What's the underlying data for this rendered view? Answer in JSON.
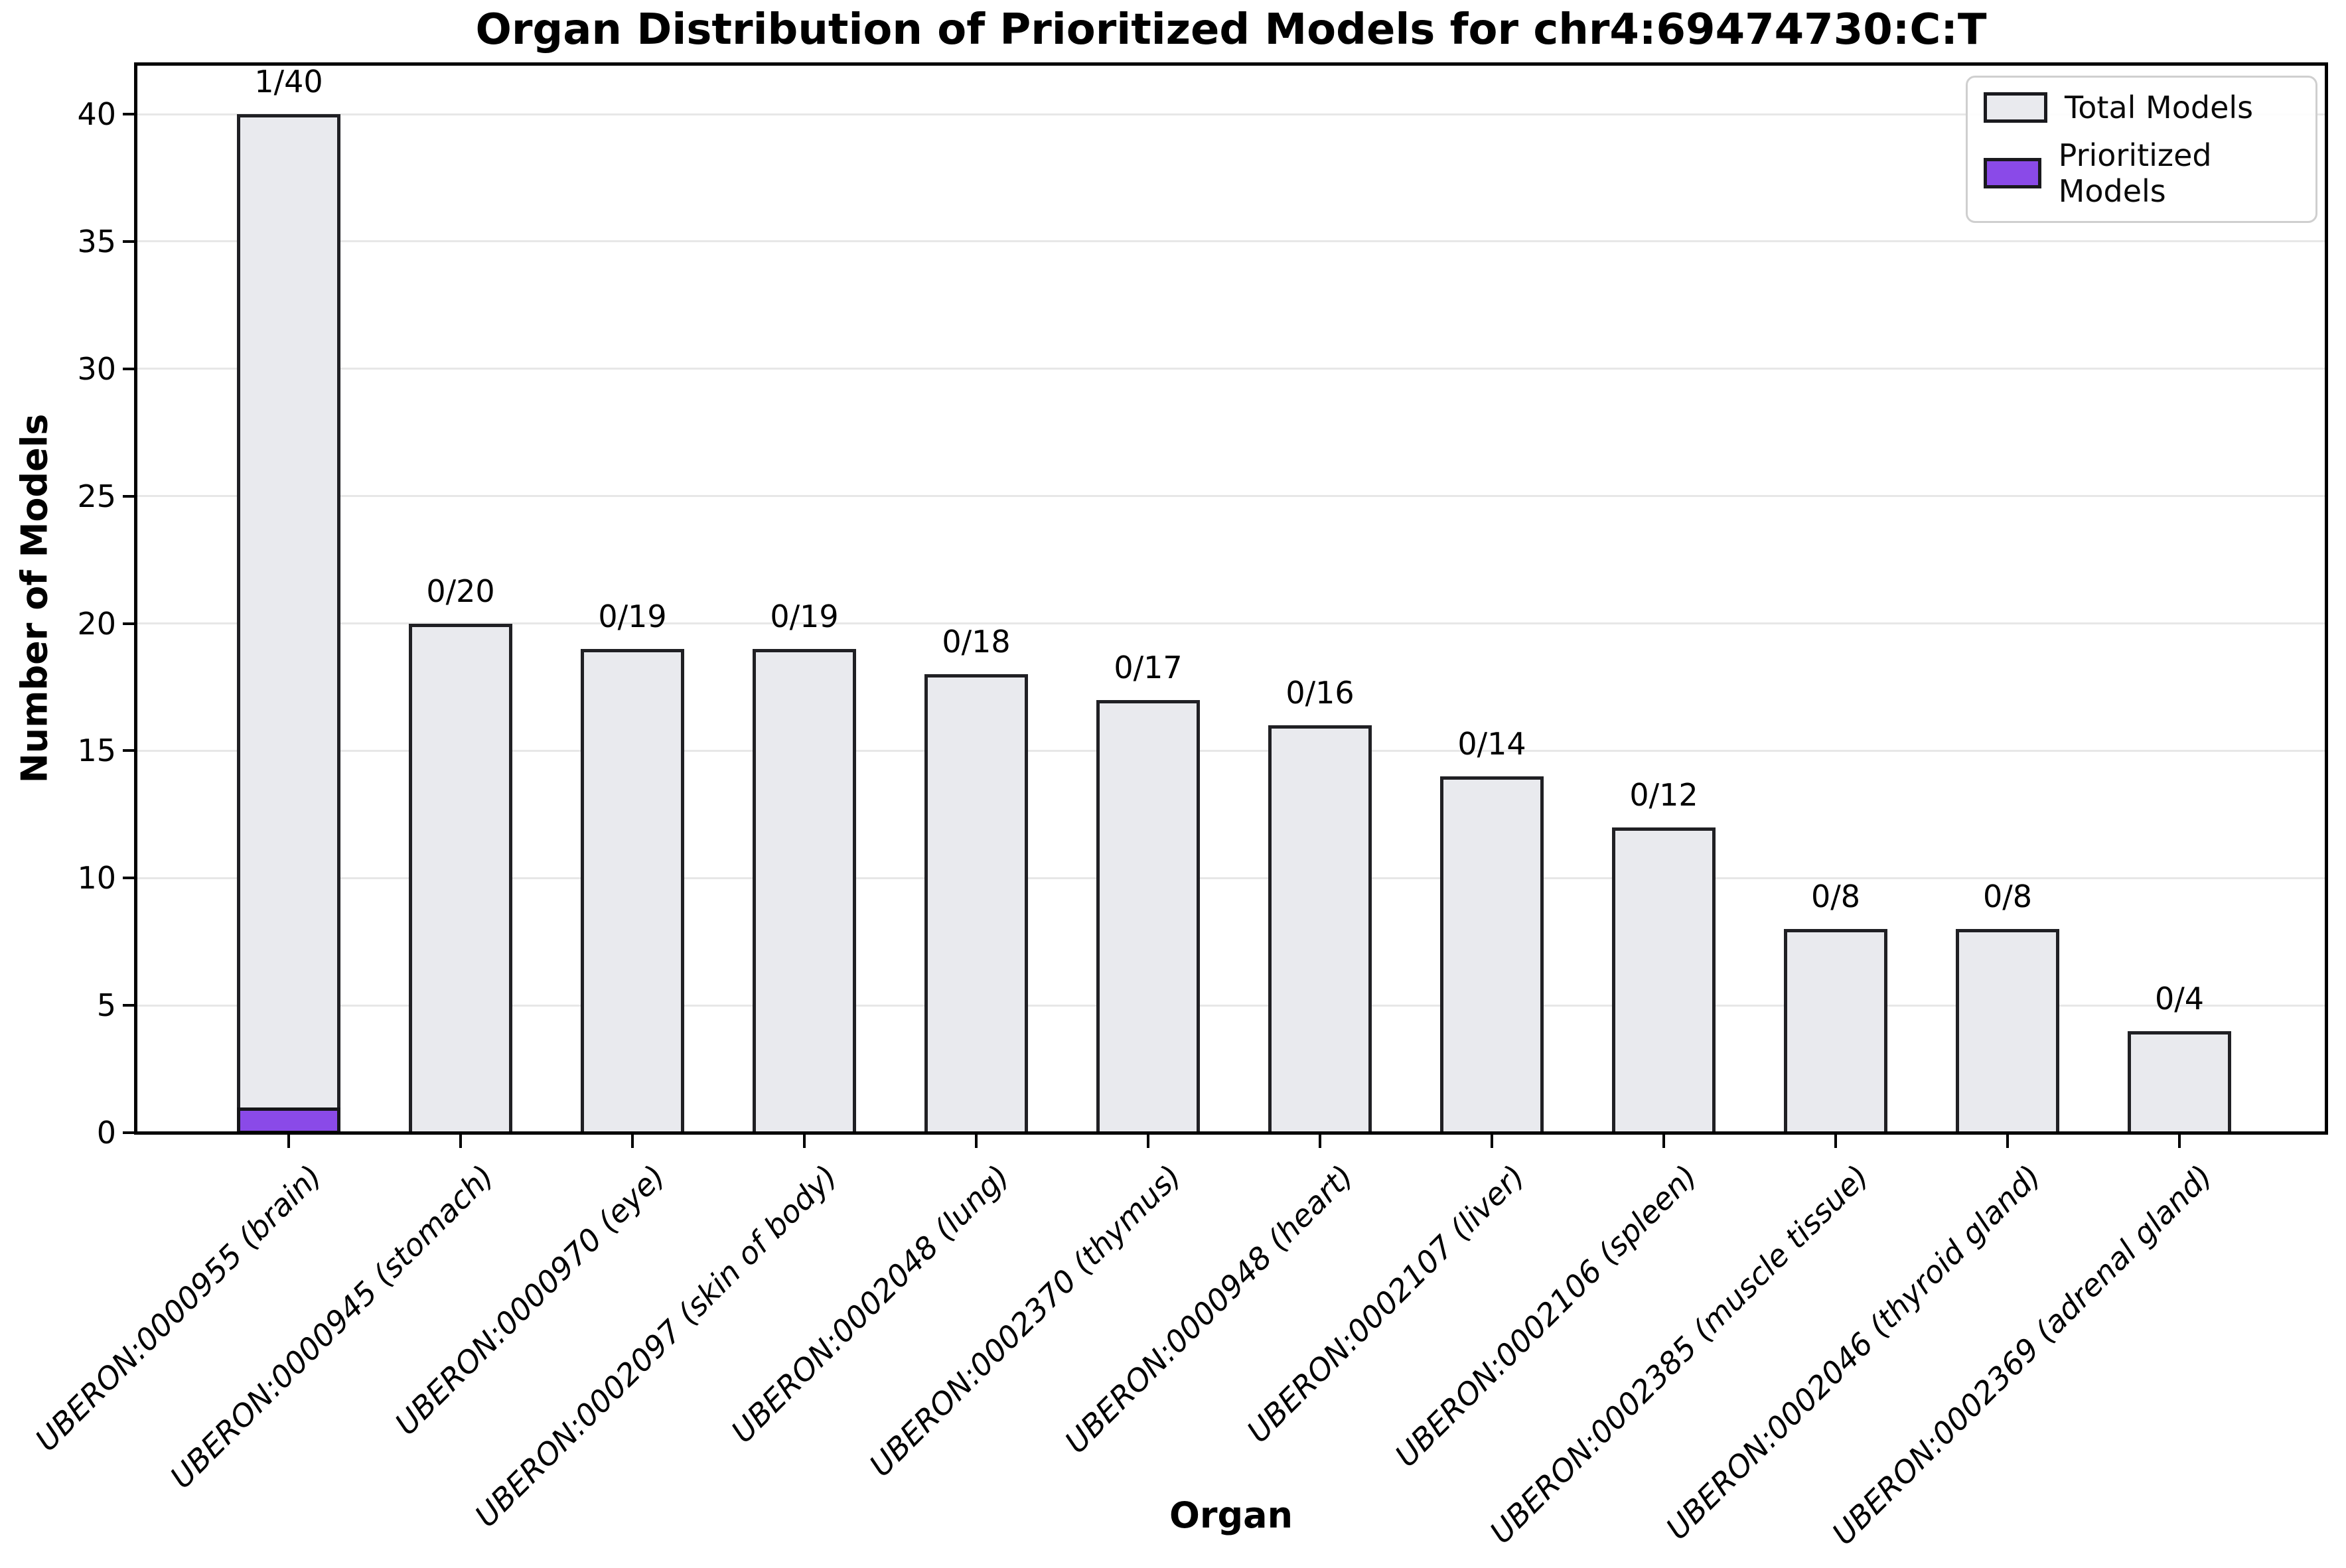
{
  "title": "Organ Distribution of Prioritized Models for chr4:69474730:C:T",
  "colors": {
    "total_fill": "#e9eaee",
    "prioritized_fill": "#8a4ae8",
    "bar_edge": "#202024",
    "grid": "#e7e7e7",
    "spine": "#000000"
  },
  "legend": {
    "items": [
      {
        "label": "Total Models",
        "color_key": "total_fill"
      },
      {
        "label": "Prioritized Models",
        "color_key": "prioritized_fill"
      }
    ]
  },
  "chart_data": {
    "type": "bar",
    "title": "Organ Distribution of Prioritized Models for chr4:69474730:C:T",
    "xlabel": "Organ",
    "ylabel": "Number of Models",
    "ylim": [
      0,
      42
    ],
    "yticks": [
      0,
      5,
      10,
      15,
      20,
      25,
      30,
      35,
      40
    ],
    "grid": "horizontal",
    "legend_position": "upper right",
    "categories": [
      "UBERON:0000955 (brain)",
      "UBERON:0000945 (stomach)",
      "UBERON:0000970 (eye)",
      "UBERON:0002097 (skin of body)",
      "UBERON:0002048 (lung)",
      "UBERON:0002370 (thymus)",
      "UBERON:0000948 (heart)",
      "UBERON:0002107 (liver)",
      "UBERON:0002106 (spleen)",
      "UBERON:0002385 (muscle tissue)",
      "UBERON:0002046 (thyroid gland)",
      "UBERON:0002369 (adrenal gland)"
    ],
    "series": [
      {
        "name": "Total Models",
        "values": [
          40,
          20,
          19,
          19,
          18,
          17,
          16,
          14,
          12,
          8,
          8,
          4
        ]
      },
      {
        "name": "Prioritized Models",
        "values": [
          1,
          0,
          0,
          0,
          0,
          0,
          0,
          0,
          0,
          0,
          0,
          0
        ]
      }
    ],
    "bar_labels": [
      "1/40",
      "0/20",
      "0/19",
      "0/19",
      "0/18",
      "0/17",
      "0/16",
      "0/14",
      "0/12",
      "0/8",
      "0/8",
      "0/4"
    ]
  }
}
